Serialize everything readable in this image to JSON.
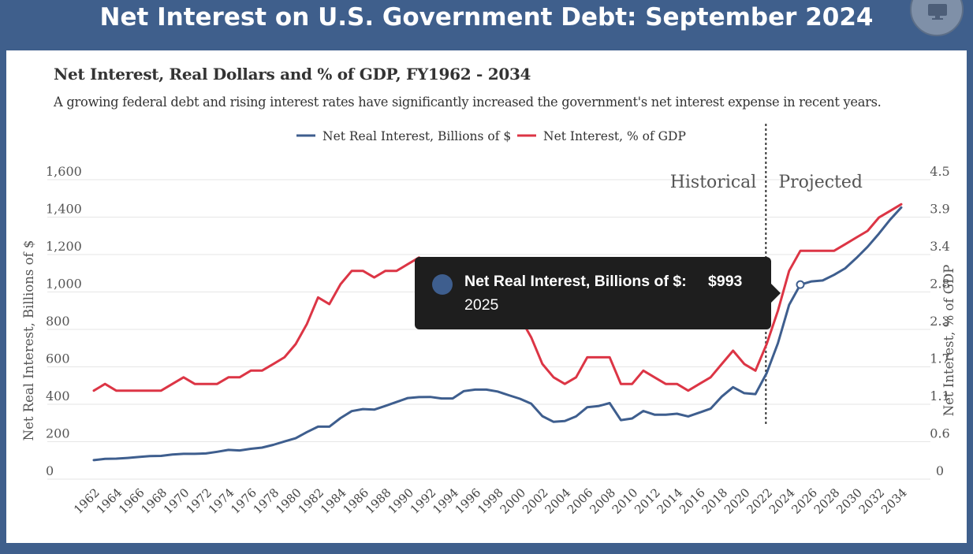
{
  "header": {
    "title": "Net Interest on U.S. Government Debt: September 2024",
    "monitor_icon": "monitor-icon"
  },
  "card": {
    "title": "Net Interest, Real Dollars and % of GDP, FY1962 - 2034",
    "subtitle": "A growing federal debt and rising interest rates have significantly increased the government's net interest expense in recent years."
  },
  "colors": {
    "header_bg": "#3f5f8c",
    "real_interest": "#3e5e8e",
    "pct_gdp": "#dc3545",
    "tooltip_bg": "#1e1e1e"
  },
  "tooltip": {
    "series": "Net Real Interest, Billions of $:",
    "value": "$993",
    "year": "2025"
  },
  "chart_data": {
    "type": "line",
    "title": "Net Interest, Real Dollars and % of GDP, FY1962 - 2034",
    "x_tick_labels": [
      "1962",
      "1964",
      "1966",
      "1968",
      "1970",
      "1972",
      "1974",
      "1976",
      "1978",
      "1980",
      "1982",
      "1984",
      "1986",
      "1988",
      "1990",
      "1992",
      "1994",
      "1996",
      "1998",
      "2000",
      "2002",
      "2004",
      "2006",
      "2008",
      "2010",
      "2012",
      "2014",
      "2016",
      "2018",
      "2020",
      "2022",
      "2024",
      "2026",
      "2028",
      "2030",
      "2032",
      "2034"
    ],
    "y_left_label": "Net Real Interest, Billions of $",
    "y_left_ticks": [
      "0",
      "200",
      "400",
      "600",
      "800",
      "1,000",
      "1,200",
      "1,400",
      "1,600"
    ],
    "y_left_range": [
      0,
      1600
    ],
    "y_right_label": "Net Interest, % of GDP",
    "y_right_ticks": [
      "0",
      "0.6",
      "1.1",
      "1.7",
      "2.3",
      "2.8",
      "3.4",
      "3.9",
      "4.5"
    ],
    "y_right_range": [
      0,
      4.5
    ],
    "legend_position": "top-center",
    "annotations": {
      "historical": "Historical",
      "projected": "Projected",
      "divider_year": 2022
    },
    "highlight": {
      "series": 0,
      "x": 2025,
      "y": 993
    },
    "series": [
      {
        "name": "Net Real Interest, Billions of $",
        "axis": "left",
        "color": "#3e5e8e",
        "x": [
          1962,
          1963,
          1964,
          1965,
          1966,
          1967,
          1968,
          1969,
          1970,
          1971,
          1972,
          1973,
          1974,
          1975,
          1976,
          1977,
          1978,
          1979,
          1980,
          1981,
          1982,
          1983,
          1984,
          1985,
          1986,
          1987,
          1988,
          1989,
          1990,
          1991,
          1992,
          1993,
          1994,
          1995,
          1996,
          1997,
          1998,
          1999,
          2000,
          2001,
          2002,
          2003,
          2004,
          2005,
          2006,
          2007,
          2008,
          2009,
          2010,
          2011,
          2012,
          2013,
          2014,
          2015,
          2016,
          2017,
          2018,
          2019,
          2020,
          2021,
          2022,
          2023,
          2024,
          2025,
          2026,
          2027,
          2028,
          2029,
          2030,
          2031,
          2032,
          2033,
          2034
        ],
        "values": [
          55,
          62,
          63,
          67,
          72,
          77,
          78,
          85,
          89,
          89,
          91,
          100,
          110,
          107,
          116,
          122,
          137,
          155,
          172,
          205,
          234,
          234,
          280,
          317,
          328,
          325,
          345,
          366,
          387,
          392,
          393,
          385,
          385,
          424,
          432,
          432,
          422,
          402,
          383,
          357,
          290,
          260,
          264,
          289,
          338,
          344,
          360,
          269,
          278,
          318,
          298,
          298,
          303,
          289,
          309,
          330,
          395,
          445,
          413,
          408,
          520,
          680,
          885,
          993,
          1010,
          1015,
          1045,
          1080,
          1135,
          1195,
          1265,
          1340,
          1405
        ]
      },
      {
        "name": "Net Interest, % of GDP",
        "axis": "right",
        "color": "#dc3545",
        "x": [
          1962,
          1963,
          1964,
          1965,
          1966,
          1967,
          1968,
          1969,
          1970,
          1971,
          1972,
          1973,
          1974,
          1975,
          1976,
          1977,
          1978,
          1979,
          1980,
          1981,
          1982,
          1983,
          1984,
          1985,
          1986,
          1987,
          1988,
          1989,
          1990,
          1991,
          1992,
          1993,
          1994,
          1995,
          1996,
          1997,
          1998,
          1999,
          2000,
          2001,
          2002,
          2003,
          2004,
          2005,
          2006,
          2007,
          2008,
          2009,
          2010,
          2011,
          2012,
          2013,
          2014,
          2015,
          2016,
          2017,
          2018,
          2019,
          2020,
          2021,
          2022,
          2023,
          2024,
          2025,
          2026,
          2027,
          2028,
          2029,
          2030,
          2031,
          2032,
          2033,
          2034
        ],
        "values": [
          1.2,
          1.3,
          1.2,
          1.2,
          1.2,
          1.2,
          1.2,
          1.3,
          1.4,
          1.3,
          1.3,
          1.3,
          1.4,
          1.4,
          1.5,
          1.5,
          1.6,
          1.7,
          1.9,
          2.2,
          2.6,
          2.5,
          2.8,
          3.0,
          3.0,
          2.9,
          3.0,
          3.0,
          3.1,
          3.2,
          3.1,
          3.0,
          2.9,
          3.1,
          3.0,
          2.9,
          2.8,
          2.5,
          2.3,
          2.0,
          1.6,
          1.4,
          1.3,
          1.4,
          1.7,
          1.7,
          1.7,
          1.3,
          1.3,
          1.5,
          1.4,
          1.3,
          1.3,
          1.2,
          1.3,
          1.4,
          1.6,
          1.8,
          1.6,
          1.5,
          1.9,
          2.4,
          3.0,
          3.3,
          3.3,
          3.3,
          3.3,
          3.4,
          3.5,
          3.6,
          3.8,
          3.9,
          4.0
        ]
      }
    ]
  }
}
